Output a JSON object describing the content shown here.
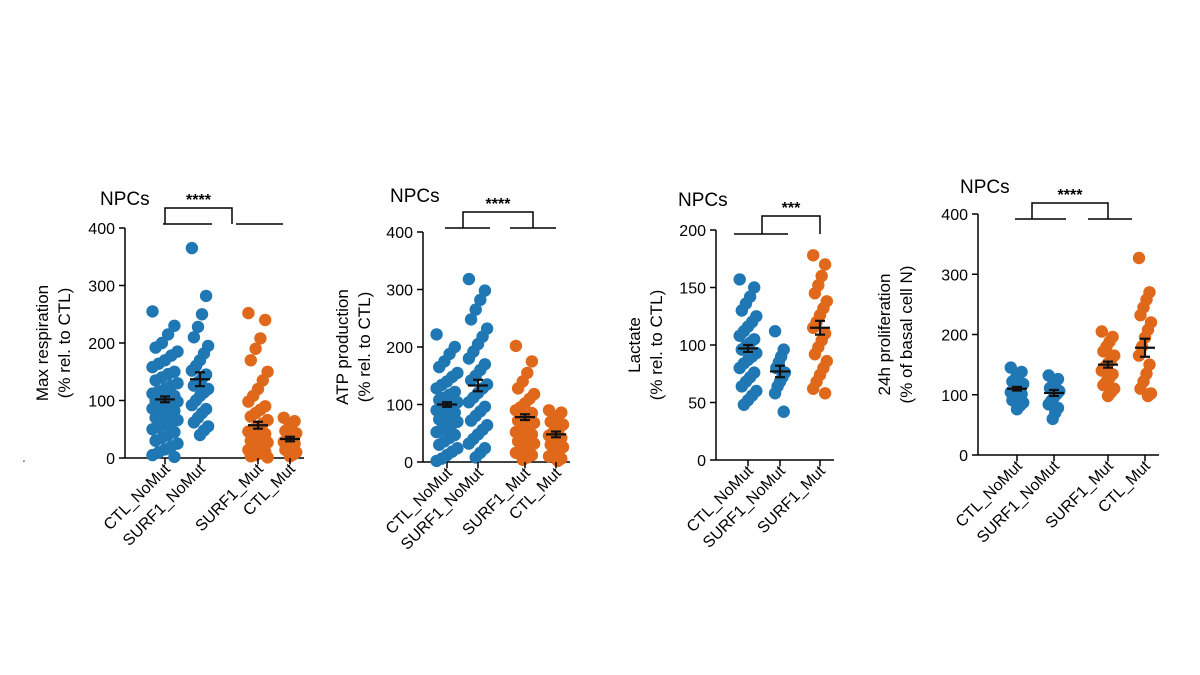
{
  "colors": {
    "nomut": "#1f77b4",
    "mut": "#e0681b",
    "axis": "#000000"
  },
  "stray_mark": ".",
  "chart_data": [
    {
      "type": "scatter",
      "title": "NPCs",
      "ylabel_lines": [
        "Max respiration",
        "(% rel. to CTL)"
      ],
      "ylim": [
        0,
        400
      ],
      "yticks": [
        0,
        100,
        200,
        300,
        400
      ],
      "significance": "****",
      "groups": [
        {
          "name": "CTL_NoMut",
          "color": "nomut",
          "mean": 102,
          "sem": 5,
          "values": [
            255,
            230,
            215,
            200,
            192,
            185,
            178,
            170,
            164,
            158,
            150,
            146,
            140,
            135,
            130,
            126,
            120,
            116,
            112,
            108,
            105,
            102,
            100,
            98,
            95,
            92,
            90,
            86,
            82,
            78,
            74,
            70,
            66,
            62,
            58,
            54,
            50,
            45,
            40,
            35,
            30,
            25,
            20,
            15,
            10,
            5,
            2
          ]
        },
        {
          "name": "SURF1_NoMut",
          "color": "nomut",
          "mean": 137,
          "sem": 12,
          "values": [
            365,
            282,
            250,
            228,
            210,
            195,
            182,
            170,
            160,
            152,
            145,
            138,
            132,
            126,
            120,
            114,
            108,
            100,
            92,
            85,
            78,
            70,
            62,
            55,
            48,
            40
          ]
        },
        {
          "name": "SURF1_Mut",
          "color": "mut",
          "mean": 57,
          "sem": 6,
          "values": [
            252,
            240,
            208,
            190,
            170,
            150,
            135,
            120,
            108,
            98,
            90,
            84,
            78,
            72,
            66,
            60,
            55,
            50,
            46,
            42,
            38,
            34,
            30,
            27,
            24,
            20,
            17,
            14,
            11,
            8,
            5,
            3,
            1
          ]
        },
        {
          "name": "CTL_Mut",
          "color": "mut",
          "mean": 33,
          "sem": 4,
          "values": [
            70,
            64,
            58,
            52,
            47,
            43,
            39,
            35,
            31,
            28,
            25,
            21,
            18,
            14,
            10,
            6,
            3
          ]
        }
      ]
    },
    {
      "type": "scatter",
      "title": "NPCs",
      "ylabel_lines": [
        "ATP production",
        "(% rel. to CTL)"
      ],
      "ylim": [
        0,
        400
      ],
      "yticks": [
        0,
        100,
        200,
        300,
        400
      ],
      "significance": "****",
      "groups": [
        {
          "name": "CTL_NoMut",
          "color": "nomut",
          "mean": 100,
          "sem": 4,
          "values": [
            222,
            200,
            188,
            175,
            165,
            155,
            148,
            140,
            134,
            128,
            122,
            117,
            112,
            108,
            104,
            100,
            97,
            94,
            90,
            86,
            82,
            78,
            74,
            70,
            66,
            62,
            57,
            52,
            47,
            42,
            36,
            30,
            24,
            18,
            12,
            6,
            2
          ]
        },
        {
          "name": "SURF1_NoMut",
          "color": "nomut",
          "mean": 133,
          "sem": 10,
          "values": [
            318,
            298,
            282,
            265,
            248,
            232,
            218,
            205,
            192,
            180,
            170,
            160,
            150,
            142,
            135,
            128,
            120,
            112,
            104,
            96,
            88,
            80,
            72,
            64,
            56,
            48,
            40,
            32,
            24,
            16,
            8
          ]
        },
        {
          "name": "SURF1_Mut",
          "color": "mut",
          "mean": 78,
          "sem": 5,
          "values": [
            202,
            175,
            155,
            140,
            128,
            118,
            110,
            102,
            95,
            90,
            85,
            80,
            76,
            72,
            68,
            64,
            60,
            56,
            52,
            48,
            44,
            40,
            36,
            32,
            28,
            24,
            20,
            16,
            12,
            8,
            4
          ]
        },
        {
          "name": "CTL_Mut",
          "color": "mut",
          "mean": 48,
          "sem": 5,
          "values": [
            90,
            86,
            80,
            75,
            70,
            65,
            60,
            55,
            50,
            46,
            42,
            38,
            34,
            30,
            26,
            22,
            18,
            14,
            10,
            6,
            2
          ]
        }
      ]
    },
    {
      "type": "scatter",
      "title": "NPCs",
      "ylabel_lines": [
        "Lactate",
        "(% rel. to CTL)"
      ],
      "ylim": [
        0,
        200
      ],
      "yticks": [
        0,
        50,
        100,
        150,
        200
      ],
      "significance": "***",
      "groups": [
        {
          "name": "CTL_NoMut",
          "color": "nomut",
          "mean": 97,
          "sem": 3,
          "values": [
            157,
            150,
            142,
            136,
            130,
            125,
            120,
            116,
            112,
            108,
            105,
            102,
            99,
            96,
            93,
            90,
            87,
            84,
            80,
            76,
            72,
            68,
            64,
            60,
            56,
            52,
            48
          ]
        },
        {
          "name": "SURF1_NoMut",
          "color": "nomut",
          "mean": 77,
          "sem": 5,
          "values": [
            112,
            96,
            90,
            85,
            80,
            76,
            72,
            68,
            64,
            58,
            42
          ]
        },
        {
          "name": "SURF1_Mut",
          "color": "mut",
          "mean": 115,
          "sem": 6,
          "values": [
            178,
            170,
            160,
            152,
            145,
            138,
            132,
            126,
            120,
            115,
            110,
            104,
            98,
            92,
            86,
            80,
            74,
            68,
            62,
            58
          ]
        }
      ]
    },
    {
      "type": "scatter",
      "title": "NPCs",
      "ylabel_lines": [
        "24h proliferation",
        "(% of basal cell N)"
      ],
      "ylim": [
        0,
        400
      ],
      "yticks": [
        0,
        100,
        200,
        300,
        400
      ],
      "significance": "****",
      "groups": [
        {
          "name": "CTL_NoMut",
          "color": "nomut",
          "mean": 110,
          "sem": 3,
          "values": [
            145,
            138,
            132,
            127,
            122,
            118,
            114,
            110,
            107,
            104,
            101,
            98,
            95,
            91,
            87,
            82,
            76
          ]
        },
        {
          "name": "SURF1_NoMut",
          "color": "nomut",
          "mean": 103,
          "sem": 5,
          "values": [
            132,
            126,
            121,
            116,
            111,
            106,
            101,
            96,
            90,
            84,
            78,
            70,
            60
          ]
        },
        {
          "name": "SURF1_Mut",
          "color": "mut",
          "mean": 150,
          "sem": 5,
          "values": [
            205,
            196,
            188,
            180,
            172,
            165,
            158,
            152,
            146,
            140,
            134,
            128,
            122,
            116,
            110,
            104,
            98
          ]
        },
        {
          "name": "CTL_Mut",
          "color": "mut",
          "mean": 178,
          "sem": 15,
          "values": [
            327,
            270,
            258,
            245,
            232,
            220,
            208,
            195,
            180,
            165,
            150,
            135,
            122,
            110,
            102,
            98
          ]
        }
      ]
    }
  ]
}
